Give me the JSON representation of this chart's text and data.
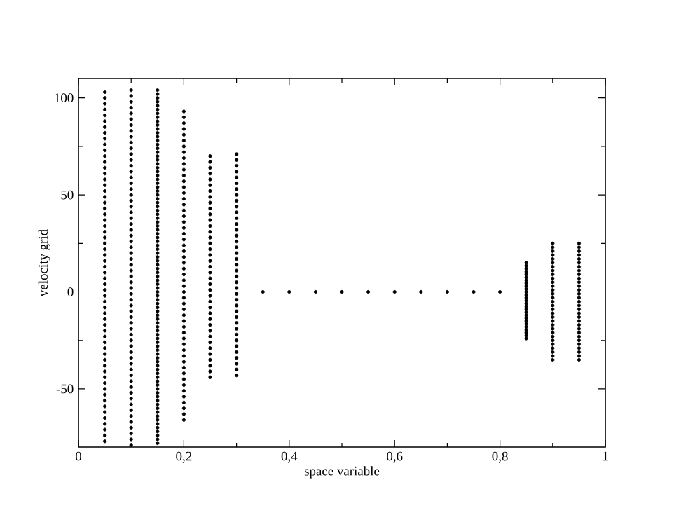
{
  "chart_data": {
    "type": "scatter",
    "xlabel": "space variable",
    "ylabel": "velocity grid",
    "marker": "circle",
    "color": "#000000",
    "xlim": [
      0,
      1
    ],
    "ylim": [
      -80,
      110
    ],
    "xticks": [
      0,
      {
        "value": 0.2,
        "label": "0,2"
      },
      {
        "value": 0.4,
        "label": "0,4"
      },
      {
        "value": 0.6,
        "label": "0,6"
      },
      {
        "value": 0.8,
        "label": "0,8"
      },
      1
    ],
    "yticks": [
      -50,
      0,
      50,
      100
    ],
    "series": [
      {
        "x": [
          0.05,
          0.05,
          0.05,
          0.05,
          0.05,
          0.05,
          0.05,
          0.05,
          0.05,
          0.05,
          0.05,
          0.05,
          0.05,
          0.05,
          0.05,
          0.05,
          0.05,
          0.05,
          0.05,
          0.05,
          0.05,
          0.05,
          0.05,
          0.05,
          0.05,
          0.05,
          0.05,
          0.05,
          0.05,
          0.05,
          0.05,
          0.05,
          0.05,
          0.05,
          0.05,
          0.05,
          0.05,
          0.05,
          0.05,
          0.05,
          0.05,
          0.05,
          0.05,
          0.05,
          0.05,
          0.05,
          0.05,
          0.05,
          0.05,
          0.05,
          0.05,
          0.05,
          0.05,
          0.05,
          0.05,
          0.05,
          0.05,
          0.05,
          0.05,
          0.05,
          0.05
        ],
        "values": [
          -77,
          -74,
          -71,
          -68,
          -65,
          -62,
          -59,
          -56,
          -53,
          -50,
          -47,
          -44,
          -41,
          -38,
          -35,
          -32,
          -29,
          -26,
          -23,
          -20,
          -17,
          -14,
          -11,
          -8,
          -5,
          -2,
          1,
          4,
          7,
          10,
          13,
          16,
          19,
          22,
          25,
          28,
          31,
          34,
          37,
          40,
          43,
          46,
          49,
          52,
          55,
          58,
          61,
          64,
          67,
          70,
          73,
          76,
          79,
          82,
          85,
          88,
          91,
          94,
          97,
          100,
          103
        ]
      },
      {
        "x": [
          0.1,
          0.1,
          0.1,
          0.1,
          0.1,
          0.1,
          0.1,
          0.1,
          0.1,
          0.1,
          0.1,
          0.1,
          0.1,
          0.1,
          0.1,
          0.1,
          0.1,
          0.1,
          0.1,
          0.1,
          0.1,
          0.1,
          0.1,
          0.1,
          0.1,
          0.1,
          0.1,
          0.1,
          0.1,
          0.1,
          0.1,
          0.1,
          0.1,
          0.1,
          0.1,
          0.1,
          0.1,
          0.1,
          0.1,
          0.1,
          0.1,
          0.1,
          0.1,
          0.1,
          0.1,
          0.1,
          0.1,
          0.1,
          0.1,
          0.1,
          0.1,
          0.1,
          0.1,
          0.1,
          0.1,
          0.1,
          0.1,
          0.1,
          0.1,
          0.1,
          0.1,
          0.1
        ],
        "values": [
          -79,
          -76,
          -73,
          -70,
          -67,
          -64,
          -61,
          -58,
          -55,
          -52,
          -49,
          -46,
          -43,
          -40,
          -37,
          -34,
          -31,
          -28,
          -25,
          -22,
          -19,
          -16,
          -13,
          -10,
          -7,
          -4,
          -1,
          2,
          5,
          8,
          11,
          14,
          17,
          20,
          23,
          26,
          29,
          32,
          35,
          38,
          41,
          44,
          47,
          50,
          53,
          56,
          59,
          62,
          65,
          68,
          71,
          74,
          77,
          80,
          83,
          86,
          89,
          92,
          95,
          98,
          101,
          104
        ]
      },
      {
        "x": [
          0.15,
          0.15,
          0.15,
          0.15,
          0.15,
          0.15,
          0.15,
          0.15,
          0.15,
          0.15,
          0.15,
          0.15,
          0.15,
          0.15,
          0.15,
          0.15,
          0.15,
          0.15,
          0.15,
          0.15,
          0.15,
          0.15,
          0.15,
          0.15,
          0.15,
          0.15,
          0.15,
          0.15,
          0.15,
          0.15,
          0.15,
          0.15,
          0.15,
          0.15,
          0.15,
          0.15,
          0.15,
          0.15,
          0.15,
          0.15,
          0.15,
          0.15,
          0.15,
          0.15,
          0.15,
          0.15,
          0.15,
          0.15,
          0.15,
          0.15,
          0.15,
          0.15,
          0.15,
          0.15,
          0.15,
          0.15,
          0.15,
          0.15,
          0.15,
          0.15,
          0.15,
          0.15,
          0.15,
          0.15,
          0.15,
          0.15,
          0.15,
          0.15,
          0.15,
          0.15,
          0.15,
          0.15,
          0.15,
          0.15,
          0.15,
          0.15,
          0.15,
          0.15,
          0.15,
          0.15,
          0.15,
          0.15,
          0.15,
          0.15,
          0.15,
          0.15,
          0.15,
          0.15,
          0.15,
          0.15,
          0.15,
          0.15
        ],
        "values": [
          -78,
          -76,
          -74,
          -72,
          -70,
          -68,
          -66,
          -64,
          -62,
          -60,
          -58,
          -56,
          -54,
          -52,
          -50,
          -48,
          -46,
          -44,
          -42,
          -40,
          -38,
          -36,
          -34,
          -32,
          -30,
          -28,
          -26,
          -24,
          -22,
          -20,
          -18,
          -16,
          -14,
          -12,
          -10,
          -8,
          -6,
          -4,
          -2,
          0,
          2,
          4,
          6,
          8,
          10,
          12,
          14,
          16,
          18,
          20,
          22,
          24,
          26,
          28,
          30,
          32,
          34,
          36,
          38,
          40,
          42,
          44,
          46,
          48,
          50,
          52,
          54,
          56,
          58,
          60,
          62,
          64,
          66,
          68,
          70,
          72,
          74,
          76,
          78,
          80,
          82,
          84,
          86,
          88,
          90,
          92,
          94,
          96,
          98,
          100,
          102,
          104
        ]
      },
      {
        "x": [
          0.2,
          0.2,
          0.2,
          0.2,
          0.2,
          0.2,
          0.2,
          0.2,
          0.2,
          0.2,
          0.2,
          0.2,
          0.2,
          0.2,
          0.2,
          0.2,
          0.2,
          0.2,
          0.2,
          0.2,
          0.2,
          0.2,
          0.2,
          0.2,
          0.2,
          0.2,
          0.2,
          0.2,
          0.2,
          0.2,
          0.2,
          0.2,
          0.2,
          0.2,
          0.2,
          0.2,
          0.2,
          0.2,
          0.2,
          0.2,
          0.2,
          0.2,
          0.2,
          0.2,
          0.2,
          0.2,
          0.2,
          0.2,
          0.2,
          0.2,
          0.2,
          0.2,
          0.2,
          0.2
        ],
        "values": [
          -66,
          -63,
          -60,
          -57,
          -54,
          -51,
          -48,
          -45,
          -42,
          -39,
          -36,
          -33,
          -30,
          -27,
          -24,
          -21,
          -18,
          -15,
          -12,
          -9,
          -6,
          -3,
          0,
          3,
          6,
          9,
          12,
          15,
          18,
          21,
          24,
          27,
          30,
          33,
          36,
          39,
          42,
          45,
          48,
          51,
          54,
          57,
          60,
          63,
          66,
          69,
          72,
          75,
          78,
          81,
          84,
          87,
          90,
          93
        ]
      },
      {
        "x": [
          0.25,
          0.25,
          0.25,
          0.25,
          0.25,
          0.25,
          0.25,
          0.25,
          0.25,
          0.25,
          0.25,
          0.25,
          0.25,
          0.25,
          0.25,
          0.25,
          0.25,
          0.25,
          0.25,
          0.25,
          0.25,
          0.25,
          0.25,
          0.25,
          0.25,
          0.25,
          0.25,
          0.25,
          0.25,
          0.25,
          0.25,
          0.25,
          0.25,
          0.25,
          0.25,
          0.25,
          0.25,
          0.25,
          0.25
        ],
        "values": [
          -44,
          -41,
          -38,
          -35,
          -32,
          -29,
          -26,
          -23,
          -20,
          -17,
          -14,
          -11,
          -8,
          -5,
          -2,
          1,
          4,
          7,
          10,
          13,
          16,
          19,
          22,
          25,
          28,
          31,
          34,
          37,
          40,
          43,
          46,
          49,
          52,
          55,
          58,
          61,
          64,
          67,
          70
        ]
      },
      {
        "x": [
          0.3,
          0.3,
          0.3,
          0.3,
          0.3,
          0.3,
          0.3,
          0.3,
          0.3,
          0.3,
          0.3,
          0.3,
          0.3,
          0.3,
          0.3,
          0.3,
          0.3,
          0.3,
          0.3,
          0.3,
          0.3,
          0.3,
          0.3,
          0.3,
          0.3,
          0.3,
          0.3,
          0.3,
          0.3,
          0.3,
          0.3,
          0.3,
          0.3,
          0.3,
          0.3,
          0.3,
          0.3,
          0.3,
          0.3
        ],
        "values": [
          -43,
          -40,
          -37,
          -34,
          -31,
          -28,
          -25,
          -22,
          -19,
          -16,
          -13,
          -10,
          -7,
          -4,
          -1,
          2,
          5,
          8,
          11,
          14,
          17,
          20,
          23,
          26,
          29,
          32,
          35,
          38,
          41,
          44,
          47,
          50,
          53,
          56,
          59,
          62,
          65,
          68,
          71
        ]
      },
      {
        "x": [
          0.35,
          0.4,
          0.45,
          0.5,
          0.55,
          0.6,
          0.65,
          0.7,
          0.75,
          0.8
        ],
        "values": [
          0,
          0,
          0,
          0,
          0,
          0,
          0,
          0,
          0,
          0
        ]
      },
      {
        "x": [
          0.85,
          0.85,
          0.85,
          0.85,
          0.85,
          0.85,
          0.85,
          0.85,
          0.85,
          0.85,
          0.85,
          0.85,
          0.85,
          0.85,
          0.85,
          0.85,
          0.85,
          0.85,
          0.85,
          0.85,
          0.85,
          0.85,
          0.85,
          0.85,
          0.85,
          0.85,
          0.85
        ],
        "values": [
          -24,
          -22.5,
          -21,
          -19.5,
          -18,
          -16.5,
          -15,
          -13.5,
          -12,
          -10.5,
          -9,
          -7.5,
          -6,
          -4.5,
          -3,
          -1.5,
          0,
          1.5,
          3,
          4.5,
          6,
          7.5,
          9,
          10.5,
          12,
          13.5,
          15
        ]
      },
      {
        "x": [
          0.9,
          0.9,
          0.9,
          0.9,
          0.9,
          0.9,
          0.9,
          0.9,
          0.9,
          0.9,
          0.9,
          0.9,
          0.9,
          0.9,
          0.9,
          0.9,
          0.9,
          0.9,
          0.9,
          0.9,
          0.9,
          0.9,
          0.9,
          0.9,
          0.9,
          0.9,
          0.9,
          0.9,
          0.9,
          0.9,
          0.9
        ],
        "values": [
          -35,
          -33,
          -31,
          -29,
          -27,
          -25,
          -23,
          -21,
          -19,
          -17,
          -15,
          -13,
          -11,
          -9,
          -7,
          -5,
          -3,
          -1,
          1,
          3,
          5,
          7,
          9,
          11,
          13,
          15,
          17,
          19,
          21,
          23,
          25
        ]
      },
      {
        "x": [
          0.95,
          0.95,
          0.95,
          0.95,
          0.95,
          0.95,
          0.95,
          0.95,
          0.95,
          0.95,
          0.95,
          0.95,
          0.95,
          0.95,
          0.95,
          0.95,
          0.95,
          0.95,
          0.95,
          0.95,
          0.95,
          0.95,
          0.95,
          0.95,
          0.95,
          0.95,
          0.95,
          0.95,
          0.95,
          0.95,
          0.95
        ],
        "values": [
          -35,
          -33,
          -31,
          -29,
          -27,
          -25,
          -23,
          -21,
          -19,
          -17,
          -15,
          -13,
          -11,
          -9,
          -7,
          -5,
          -3,
          -1,
          1,
          3,
          5,
          7,
          9,
          11,
          13,
          15,
          17,
          19,
          21,
          23,
          25
        ]
      }
    ]
  }
}
